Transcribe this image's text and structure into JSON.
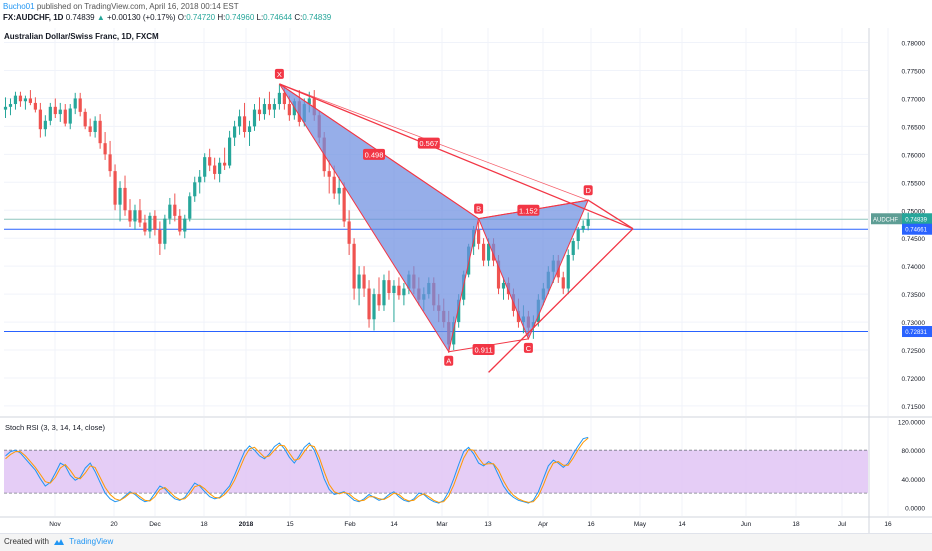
{
  "header": {
    "author": "Bucho01",
    "published": "published on TradingView.com, April 16, 2018 00:14 EST",
    "symbol": "FX:AUDCHF, 1D",
    "last": "0.74839",
    "change": "+0.00130 (+0.17%)",
    "o_label": "O:",
    "o_value": "0.74720",
    "h_label": "H:",
    "h_value": "0.74960",
    "l_label": "L:",
    "l_value": "0.74644",
    "c_label": "C:",
    "c_value": "0.74839"
  },
  "footer": {
    "created_with": "Created with",
    "brand": "TradingView"
  },
  "colors": {
    "up": "#26a69a",
    "down": "#ef5350",
    "pattern_fill": "#6d8fe0",
    "pattern_edge": "#f23645",
    "hline": "#2962ff",
    "rsi_k": "#2196f3",
    "rsi_d": "#ff9800",
    "rsi_band": "#e1c4f5"
  },
  "chart_data": [
    {
      "type": "candlestick",
      "title": "Australian Dollar/Swiss Franc, 1D, FXCM",
      "x_tick_labels": [
        "Nov",
        "20",
        "Dec",
        "18",
        "2018",
        "15",
        "Feb",
        "14",
        "Mar",
        "13",
        "Apr",
        "16",
        "May",
        "14",
        "Jun",
        "18",
        "Jul",
        "16"
      ],
      "y_tick_labels": [
        "0.78000",
        "0.77500",
        "0.77000",
        "0.76500",
        "0.76000",
        "0.75500",
        "0.75000",
        "0.74500",
        "0.74000",
        "0.73500",
        "0.73000",
        "0.72500",
        "0.72000",
        "0.71500"
      ],
      "ylim": [
        0.7132,
        0.7826
      ],
      "y_ticks": [
        0.78,
        0.775,
        0.77,
        0.765,
        0.76,
        0.755,
        0.75,
        0.745,
        0.74,
        0.735,
        0.73,
        0.725,
        0.72,
        0.715
      ],
      "last_price": {
        "label": "AUDCHF",
        "value": "0.74839",
        "y": 0.74839
      },
      "price_labels": [
        {
          "value": "0.74661",
          "y": 0.74661
        },
        {
          "value": "0.72831",
          "y": 0.72831
        }
      ],
      "candles": [
        [
          0.768,
          0.7702,
          0.7665,
          0.7685
        ],
        [
          0.7685,
          0.77,
          0.767,
          0.769
        ],
        [
          0.769,
          0.7712,
          0.768,
          0.7705
        ],
        [
          0.7705,
          0.7712,
          0.7685,
          0.7695
        ],
        [
          0.7695,
          0.7705,
          0.768,
          0.77
        ],
        [
          0.77,
          0.7715,
          0.7688,
          0.7692
        ],
        [
          0.7692,
          0.7702,
          0.7675,
          0.768
        ],
        [
          0.768,
          0.7692,
          0.763,
          0.7645
        ],
        [
          0.7645,
          0.767,
          0.7632,
          0.766
        ],
        [
          0.766,
          0.7692,
          0.7652,
          0.7685
        ],
        [
          0.7685,
          0.77,
          0.7665,
          0.7672
        ],
        [
          0.7672,
          0.7692,
          0.7658,
          0.768
        ],
        [
          0.768,
          0.769,
          0.765,
          0.7655
        ],
        [
          0.7655,
          0.769,
          0.7645,
          0.7682
        ],
        [
          0.7682,
          0.771,
          0.7672,
          0.77
        ],
        [
          0.77,
          0.771,
          0.7668,
          0.7676
        ],
        [
          0.7676,
          0.7682,
          0.7645,
          0.765
        ],
        [
          0.765,
          0.7664,
          0.7632,
          0.764
        ],
        [
          0.764,
          0.7668,
          0.763,
          0.766
        ],
        [
          0.766,
          0.7672,
          0.761,
          0.762
        ],
        [
          0.762,
          0.764,
          0.759,
          0.76
        ],
        [
          0.76,
          0.7624,
          0.756,
          0.757
        ],
        [
          0.757,
          0.7582,
          0.75,
          0.751
        ],
        [
          0.751,
          0.7552,
          0.748,
          0.754
        ],
        [
          0.754,
          0.7562,
          0.749,
          0.75
        ],
        [
          0.75,
          0.752,
          0.747,
          0.748
        ],
        [
          0.748,
          0.751,
          0.7465,
          0.75
        ],
        [
          0.75,
          0.752,
          0.747,
          0.7478
        ],
        [
          0.7478,
          0.7492,
          0.7455,
          0.7462
        ],
        [
          0.7462,
          0.7496,
          0.745,
          0.749
        ],
        [
          0.749,
          0.75,
          0.7455,
          0.7465
        ],
        [
          0.7465,
          0.748,
          0.742,
          0.744
        ],
        [
          0.744,
          0.7492,
          0.743,
          0.7485
        ],
        [
          0.7485,
          0.7522,
          0.7475,
          0.751
        ],
        [
          0.751,
          0.753,
          0.748,
          0.749
        ],
        [
          0.749,
          0.7502,
          0.7455,
          0.7462
        ],
        [
          0.7462,
          0.7492,
          0.745,
          0.7485
        ],
        [
          0.7485,
          0.7532,
          0.748,
          0.7525
        ],
        [
          0.7525,
          0.756,
          0.7515,
          0.755
        ],
        [
          0.755,
          0.7572,
          0.753,
          0.756
        ],
        [
          0.756,
          0.7602,
          0.755,
          0.7595
        ],
        [
          0.7595,
          0.761,
          0.757,
          0.758
        ],
        [
          0.758,
          0.7594,
          0.7555,
          0.7565
        ],
        [
          0.7565,
          0.7594,
          0.755,
          0.7585
        ],
        [
          0.7585,
          0.7612,
          0.7572,
          0.758
        ],
        [
          0.758,
          0.7642,
          0.7575,
          0.763
        ],
        [
          0.763,
          0.766,
          0.7615,
          0.765
        ],
        [
          0.765,
          0.768,
          0.7635,
          0.7668
        ],
        [
          0.7668,
          0.7692,
          0.763,
          0.764
        ],
        [
          0.764,
          0.766,
          0.7615,
          0.765
        ],
        [
          0.765,
          0.769,
          0.7642,
          0.768
        ],
        [
          0.768,
          0.7702,
          0.766,
          0.7672
        ],
        [
          0.7672,
          0.77,
          0.7662,
          0.769
        ],
        [
          0.769,
          0.7712,
          0.767,
          0.768
        ],
        [
          0.768,
          0.77,
          0.7665,
          0.769
        ],
        [
          0.769,
          0.7725,
          0.768,
          0.771
        ],
        [
          0.771,
          0.772,
          0.768,
          0.769
        ],
        [
          0.769,
          0.7705,
          0.766,
          0.767
        ],
        [
          0.767,
          0.77,
          0.7662,
          0.7695
        ],
        [
          0.7695,
          0.7715,
          0.765,
          0.7658
        ],
        [
          0.7658,
          0.77,
          0.765,
          0.769
        ],
        [
          0.769,
          0.7712,
          0.7675,
          0.77
        ],
        [
          0.77,
          0.7715,
          0.766,
          0.767
        ],
        [
          0.767,
          0.7678,
          0.762,
          0.763
        ],
        [
          0.763,
          0.764,
          0.756,
          0.757
        ],
        [
          0.757,
          0.759,
          0.753,
          0.756
        ],
        [
          0.756,
          0.758,
          0.752,
          0.753
        ],
        [
          0.753,
          0.756,
          0.751,
          0.754
        ],
        [
          0.754,
          0.755,
          0.747,
          0.748
        ],
        [
          0.748,
          0.75,
          0.742,
          0.744
        ],
        [
          0.744,
          0.745,
          0.734,
          0.736
        ],
        [
          0.736,
          0.74,
          0.733,
          0.7385
        ],
        [
          0.7385,
          0.74,
          0.7345,
          0.736
        ],
        [
          0.736,
          0.7375,
          0.729,
          0.7305
        ],
        [
          0.7305,
          0.736,
          0.7285,
          0.735
        ],
        [
          0.735,
          0.738,
          0.732,
          0.733
        ],
        [
          0.733,
          0.7385,
          0.732,
          0.7375
        ],
        [
          0.7375,
          0.7392,
          0.734,
          0.7352
        ],
        [
          0.7352,
          0.7375,
          0.73,
          0.7365
        ],
        [
          0.7365,
          0.738,
          0.734,
          0.7348
        ],
        [
          0.7348,
          0.737,
          0.733,
          0.736
        ],
        [
          0.736,
          0.7392,
          0.735,
          0.7385
        ],
        [
          0.7385,
          0.74,
          0.735,
          0.736
        ],
        [
          0.736,
          0.738,
          0.733,
          0.734
        ],
        [
          0.734,
          0.7362,
          0.732,
          0.735
        ],
        [
          0.735,
          0.738,
          0.7342,
          0.737
        ],
        [
          0.737,
          0.738,
          0.732,
          0.733
        ],
        [
          0.733,
          0.735,
          0.73,
          0.732
        ],
        [
          0.732,
          0.7342,
          0.729,
          0.73
        ],
        [
          0.73,
          0.732,
          0.7245,
          0.726
        ],
        [
          0.726,
          0.731,
          0.725,
          0.73
        ],
        [
          0.73,
          0.735,
          0.729,
          0.734
        ],
        [
          0.734,
          0.7392,
          0.733,
          0.7385
        ],
        [
          0.7385,
          0.744,
          0.738,
          0.7435
        ],
        [
          0.7435,
          0.7472,
          0.742,
          0.7465
        ],
        [
          0.7465,
          0.748,
          0.743,
          0.744
        ],
        [
          0.744,
          0.745,
          0.74,
          0.741
        ],
        [
          0.741,
          0.745,
          0.74,
          0.744
        ],
        [
          0.744,
          0.745,
          0.74,
          0.741
        ],
        [
          0.741,
          0.742,
          0.735,
          0.736
        ],
        [
          0.736,
          0.738,
          0.734,
          0.737
        ],
        [
          0.737,
          0.738,
          0.734,
          0.735
        ],
        [
          0.735,
          0.736,
          0.731,
          0.732
        ],
        [
          0.732,
          0.7342,
          0.729,
          0.73
        ],
        [
          0.73,
          0.733,
          0.728,
          0.731
        ],
        [
          0.731,
          0.732,
          0.7275,
          0.729
        ],
        [
          0.729,
          0.7312,
          0.727,
          0.73
        ],
        [
          0.73,
          0.735,
          0.7292,
          0.734
        ],
        [
          0.734,
          0.737,
          0.733,
          0.736
        ],
        [
          0.736,
          0.74,
          0.735,
          0.739
        ],
        [
          0.739,
          0.742,
          0.737,
          0.741
        ],
        [
          0.741,
          0.742,
          0.737,
          0.738
        ],
        [
          0.738,
          0.739,
          0.735,
          0.736
        ],
        [
          0.736,
          0.743,
          0.735,
          0.742
        ],
        [
          0.742,
          0.745,
          0.741,
          0.7445
        ],
        [
          0.7445,
          0.747,
          0.743,
          0.7465
        ],
        [
          0.7465,
          0.7482,
          0.746,
          0.7472
        ],
        [
          0.7472,
          0.7496,
          0.7464,
          0.7484
        ]
      ],
      "harmonic_pattern": {
        "points": [
          {
            "label": "X",
            "x": 55,
            "y": 0.7726
          },
          {
            "label": "A",
            "x": 89,
            "y": 0.7247
          },
          {
            "label": "B",
            "x": 95,
            "y": 0.7485
          },
          {
            "label": "C",
            "x": 105,
            "y": 0.727
          },
          {
            "label": "D",
            "x": 117,
            "y": 0.7518
          }
        ],
        "ratios": [
          {
            "value": "0.498",
            "x": 74,
            "y": 0.76
          },
          {
            "value": "0.567",
            "x": 85,
            "y": 0.762
          },
          {
            "value": "1.152",
            "x": 105,
            "y": 0.75
          },
          {
            "value": "0.911",
            "x": 96,
            "y": 0.7251
          }
        ]
      },
      "trendlines": [
        {
          "from": {
            "x": 55,
            "y": 0.7726
          },
          "to": {
            "x": 126,
            "y": 0.7467
          }
        },
        {
          "from": {
            "x": 97,
            "y": 0.721
          },
          "to": {
            "x": 126,
            "y": 0.7467
          }
        },
        {
          "from": {
            "x": 117,
            "y": 0.7518
          },
          "to": {
            "x": 126,
            "y": 0.7467
          }
        }
      ],
      "horizontal_lines": [
        0.74661,
        0.72831
      ]
    },
    {
      "type": "line",
      "title": "Stoch RSI (3, 3, 14, 14, close)",
      "y_tick_labels": [
        "120.0000",
        "80.0000",
        "40.0000",
        "0.0000"
      ],
      "ylim": [
        -12,
        125
      ],
      "y_ticks": [
        120,
        80,
        40,
        0
      ],
      "bands": [
        20,
        80
      ],
      "series": [
        {
          "values": [
            72,
            78,
            80,
            76,
            68,
            60,
            52,
            40,
            30,
            35,
            48,
            62,
            58,
            45,
            38,
            42,
            55,
            62,
            50,
            35,
            20,
            12,
            8,
            10,
            16,
            22,
            18,
            12,
            8,
            10,
            20,
            30,
            26,
            18,
            12,
            10,
            14,
            24,
            34,
            30,
            22,
            15,
            12,
            14,
            22,
            30,
            45,
            62,
            78,
            86,
            80,
            72,
            68,
            75,
            85,
            90,
            82,
            70,
            62,
            72,
            84,
            90,
            80,
            62,
            40,
            25,
            18,
            20,
            22,
            16,
            10,
            8,
            12,
            18,
            14,
            10,
            12,
            18,
            22,
            15,
            10,
            8,
            12,
            20,
            18,
            12,
            8,
            6,
            10,
            22,
            40,
            60,
            78,
            84,
            75,
            62,
            58,
            64,
            60,
            45,
            30,
            20,
            14,
            10,
            8,
            6,
            10,
            22,
            40,
            58,
            66,
            62,
            56,
            62,
            75,
            86,
            96,
            98
          ]
        },
        {
          "values": [
            68,
            74,
            78,
            78,
            72,
            64,
            56,
            46,
            36,
            34,
            42,
            55,
            60,
            52,
            42,
            40,
            48,
            58,
            56,
            42,
            28,
            18,
            12,
            10,
            14,
            20,
            20,
            15,
            10,
            9,
            15,
            25,
            28,
            22,
            15,
            11,
            12,
            19,
            29,
            31,
            26,
            19,
            14,
            13,
            18,
            26,
            38,
            54,
            70,
            82,
            84,
            77,
            70,
            72,
            80,
            87,
            86,
            76,
            66,
            68,
            78,
            87,
            85,
            70,
            50,
            32,
            22,
            19,
            21,
            19,
            13,
            9,
            10,
            15,
            15,
            12,
            11,
            15,
            20,
            18,
            12,
            9,
            10,
            16,
            19,
            15,
            10,
            7,
            8,
            16,
            31,
            50,
            69,
            81,
            80,
            69,
            60,
            61,
            61,
            52,
            37,
            25,
            17,
            12,
            9,
            7,
            8,
            16,
            31,
            49,
            62,
            64,
            59,
            59,
            69,
            81,
            91,
            97
          ]
        }
      ]
    }
  ]
}
